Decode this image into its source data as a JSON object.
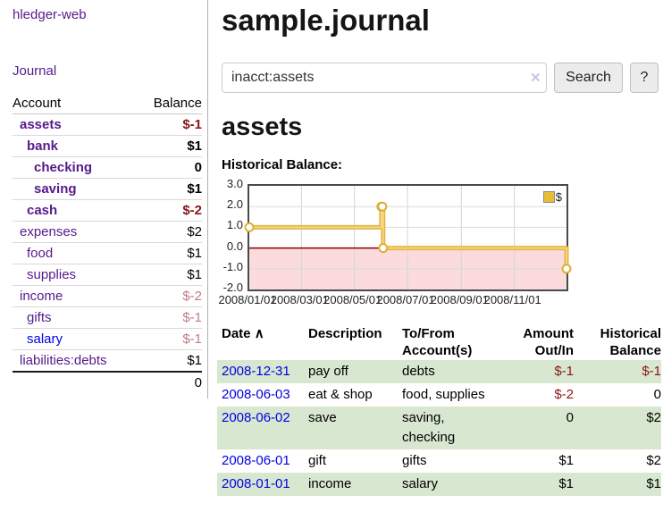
{
  "colors": {
    "link_purple": "#551a8b",
    "link_blue": "#0000e8",
    "negative_dark_red": "#8b1616",
    "negative_light_red": "#c17b80",
    "row_stripe_green": "#d8e7cf",
    "chart_line_gold": "#e2b544",
    "chart_negative_fill_pink": "#fbdbdb",
    "chart_zero_line_red": "#8b0000"
  },
  "sidebar": {
    "app_title": "hledger-web",
    "journal_link": "Journal",
    "accounts": {
      "header_account": "Account",
      "header_balance": "Balance",
      "rows": [
        {
          "name": "assets",
          "indent": 0,
          "bold": true,
          "balance": "$-1",
          "balance_class": "neg-dark"
        },
        {
          "name": "bank",
          "indent": 1,
          "bold": true,
          "balance": "$1",
          "balance_class": ""
        },
        {
          "name": "checking",
          "indent": 2,
          "bold": true,
          "balance": "0",
          "balance_class": ""
        },
        {
          "name": "saving",
          "indent": 2,
          "bold": true,
          "balance": "$1",
          "balance_class": ""
        },
        {
          "name": "cash",
          "indent": 1,
          "bold": true,
          "balance": "$-2",
          "balance_class": "neg-dark"
        },
        {
          "name": "expenses",
          "indent": 0,
          "bold": false,
          "balance": "$2",
          "balance_class": ""
        },
        {
          "name": "food",
          "indent": 1,
          "bold": false,
          "balance": "$1",
          "balance_class": ""
        },
        {
          "name": "supplies",
          "indent": 1,
          "bold": false,
          "balance": "$1",
          "balance_class": ""
        },
        {
          "name": "income",
          "indent": 0,
          "bold": false,
          "balance": "$-2",
          "balance_class": "neg-light"
        },
        {
          "name": "gifts",
          "indent": 1,
          "bold": false,
          "balance": "$-1",
          "balance_class": "neg-light"
        },
        {
          "name": "salary",
          "indent": 1,
          "bold": false,
          "balance": "$-1",
          "balance_class": "neg-light",
          "blue": true
        },
        {
          "name": "liabilities:debts",
          "indent": 0,
          "bold": false,
          "balance": "$1",
          "balance_class": ""
        }
      ],
      "total": "0"
    }
  },
  "main": {
    "title": "sample.journal",
    "search": {
      "value": "inacct:assets",
      "clear_icon": "✕",
      "search_button": "Search",
      "help_button": "?"
    },
    "account_heading": "assets",
    "section_label": "Historical Balance:"
  },
  "chart_data": {
    "type": "line",
    "step": true,
    "title": "Historical Balance:",
    "legend": "$",
    "legend_position": "top-right",
    "grid": true,
    "x_range": [
      "2008/01/01",
      "2008/12/31"
    ],
    "ylim": [
      -2,
      3
    ],
    "y_ticks": [
      "3.0",
      "2.0",
      "1.0",
      "0.0",
      "-1.0",
      "-2.0"
    ],
    "x_ticks": [
      "2008/01/01",
      "2008/03/01",
      "2008/05/01",
      "2008/07/01",
      "2008/09/01",
      "2008/11/01"
    ],
    "series": [
      {
        "name": "$",
        "points": [
          [
            "2008/01/01",
            1.0
          ],
          [
            "2008/06/01",
            2.0
          ],
          [
            "2008/06/02",
            2.0
          ],
          [
            "2008/06/03",
            0.0
          ],
          [
            "2008/12/31",
            -1.0
          ]
        ]
      }
    ],
    "negative_region_shaded": true
  },
  "transactions": {
    "headers": {
      "date": "Date",
      "sort_arrow": "∧",
      "description": "Description",
      "tofrom": "To/From\nAccount(s)",
      "amount": "Amount\nOut/In",
      "historical": "Historical\nBalance"
    },
    "rows": [
      {
        "date": "2008-12-31",
        "description": "pay off",
        "accounts": "debts",
        "amount": "$-1",
        "amount_negative": true,
        "balance": "$-1",
        "balance_negative": true,
        "shaded": true
      },
      {
        "date": "2008-06-03",
        "description": "eat & shop",
        "accounts": "food, supplies",
        "amount": "$-2",
        "amount_negative": true,
        "balance": "0",
        "balance_negative": false,
        "shaded": false
      },
      {
        "date": "2008-06-02",
        "description": "save",
        "accounts": "saving, checking",
        "amount": "0",
        "amount_negative": false,
        "balance": "$2",
        "balance_negative": false,
        "shaded": true
      },
      {
        "date": "2008-06-01",
        "description": "gift",
        "accounts": "gifts",
        "amount": "$1",
        "amount_negative": false,
        "balance": "$2",
        "balance_negative": false,
        "shaded": false
      },
      {
        "date": "2008-01-01",
        "description": "income",
        "accounts": "salary",
        "amount": "$1",
        "amount_negative": false,
        "balance": "$1",
        "balance_negative": false,
        "shaded": true
      }
    ]
  }
}
